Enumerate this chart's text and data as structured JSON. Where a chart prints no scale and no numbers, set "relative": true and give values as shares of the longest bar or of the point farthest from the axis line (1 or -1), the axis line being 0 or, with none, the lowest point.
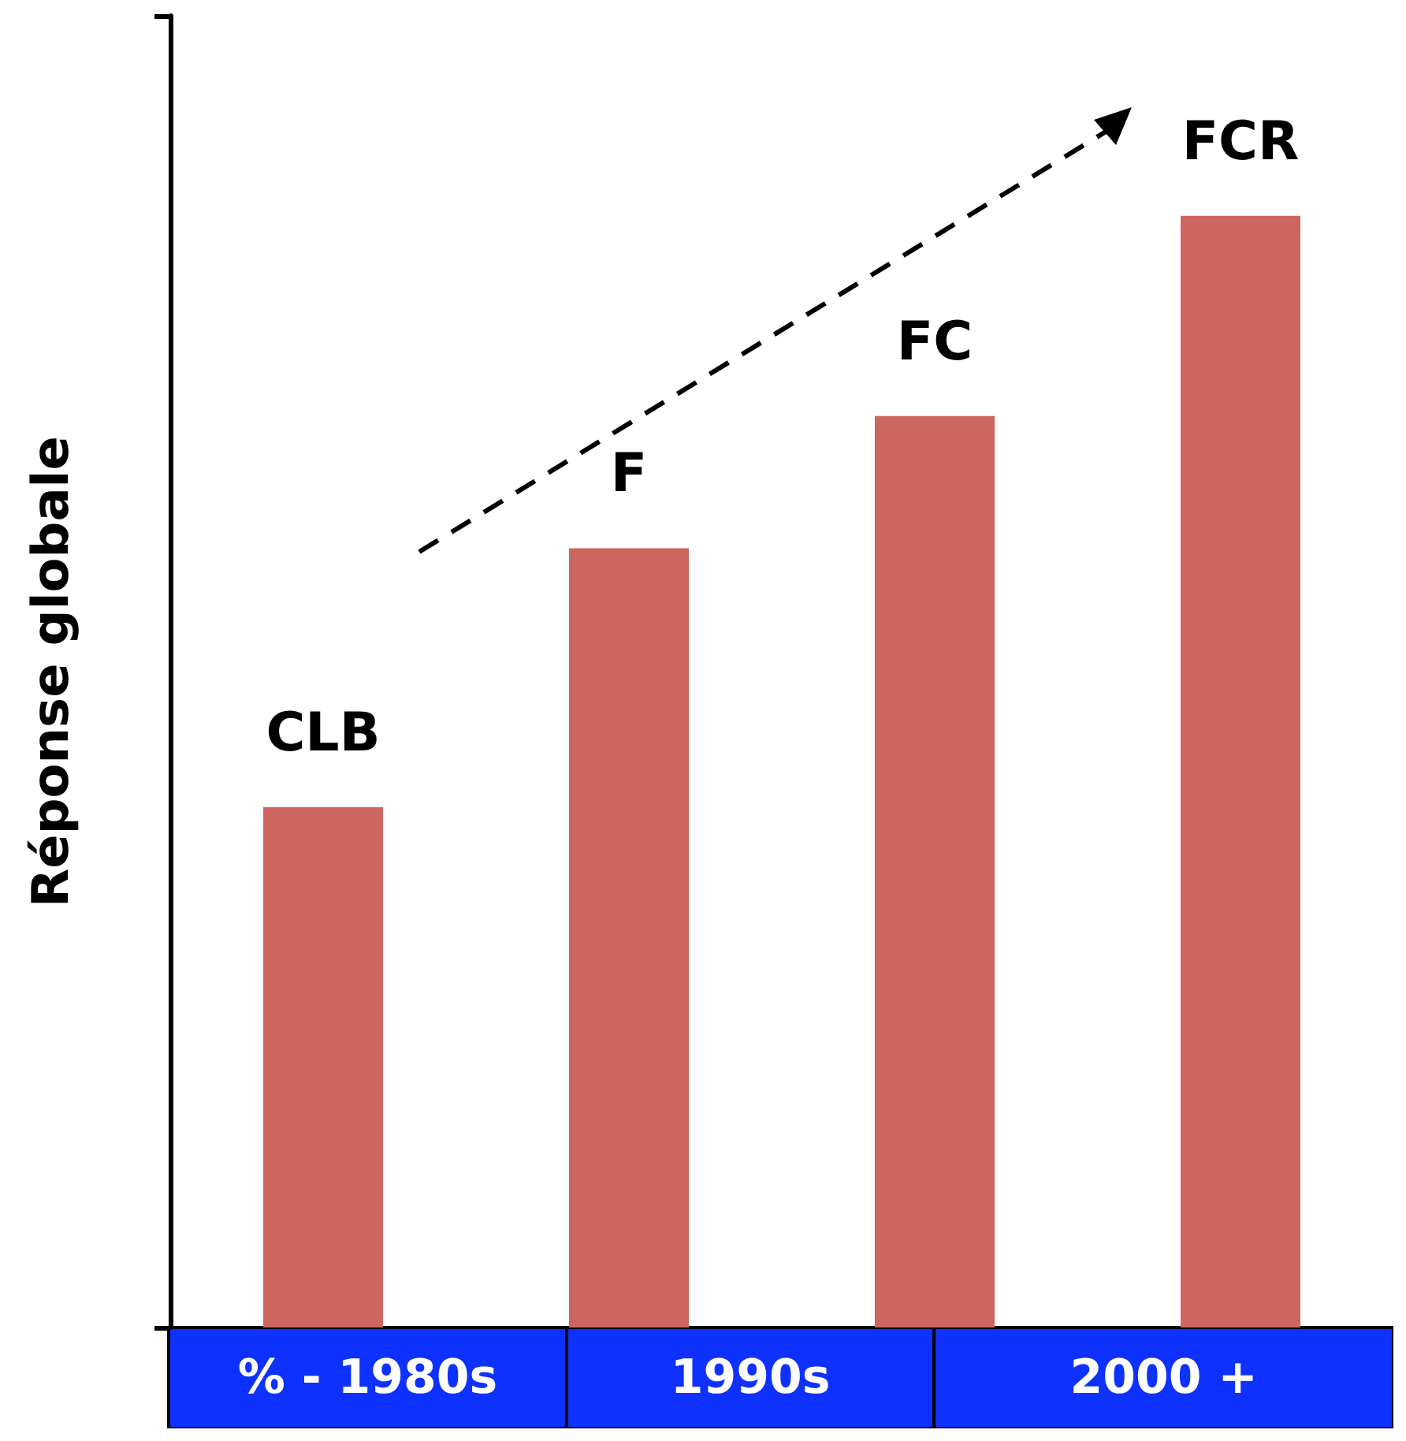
{
  "chart_data": {
    "type": "bar",
    "ylabel": "Réponse globale",
    "relative": true,
    "categories": [
      "CLB",
      "F",
      "FC",
      "FCR"
    ],
    "values": [
      0.468,
      0.701,
      0.82,
      1.0
    ],
    "color": "#cd6660",
    "annotations": [
      "% - 1980s",
      "1990s",
      "2000 +"
    ],
    "grid": false
  }
}
